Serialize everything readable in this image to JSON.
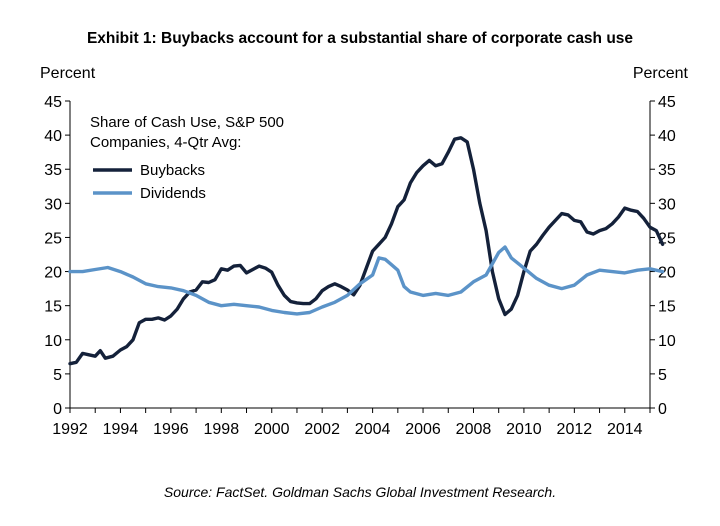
{
  "title": "Exhibit 1: Buybacks account for a substantial share of corporate cash use",
  "source": "Source: FactSet. Goldman Sachs Global Investment Research.",
  "chart_data": {
    "type": "line",
    "title": "Exhibit 1: Buybacks account for a substantial share of corporate cash use",
    "ylabel_left": "Percent",
    "ylabel_right": "Percent",
    "xlabel": "",
    "xlim": [
      1992,
      2015
    ],
    "ylim": [
      0,
      45
    ],
    "y_ticks": [
      0,
      5,
      10,
      15,
      20,
      25,
      30,
      35,
      40,
      45
    ],
    "x_ticks": [
      1992,
      1994,
      1996,
      1998,
      2000,
      2002,
      2004,
      2006,
      2008,
      2010,
      2012,
      2014
    ],
    "grid": false,
    "legend": {
      "placement": "top-left",
      "title_lines": [
        "Share of Cash Use,  S&P 500",
        "Companies, 4-Qtr Avg:"
      ]
    },
    "series": [
      {
        "name": "Buybacks",
        "color": "#14213a",
        "points": [
          [
            1992.0,
            6.5
          ],
          [
            1992.25,
            6.7
          ],
          [
            1992.5,
            8.0
          ],
          [
            1992.75,
            7.8
          ],
          [
            1993.0,
            7.6
          ],
          [
            1993.2,
            8.4
          ],
          [
            1993.4,
            7.3
          ],
          [
            1993.7,
            7.6
          ],
          [
            1994.0,
            8.5
          ],
          [
            1994.25,
            9.0
          ],
          [
            1994.5,
            10.0
          ],
          [
            1994.75,
            12.5
          ],
          [
            1995.0,
            13.0
          ],
          [
            1995.25,
            13.0
          ],
          [
            1995.5,
            13.2
          ],
          [
            1995.75,
            12.9
          ],
          [
            1996.0,
            13.5
          ],
          [
            1996.25,
            14.5
          ],
          [
            1996.5,
            16.0
          ],
          [
            1996.75,
            17.0
          ],
          [
            1997.0,
            17.3
          ],
          [
            1997.25,
            18.5
          ],
          [
            1997.5,
            18.4
          ],
          [
            1997.75,
            18.8
          ],
          [
            1998.0,
            20.4
          ],
          [
            1998.25,
            20.2
          ],
          [
            1998.5,
            20.8
          ],
          [
            1998.75,
            20.9
          ],
          [
            1999.0,
            19.8
          ],
          [
            1999.25,
            20.3
          ],
          [
            1999.5,
            20.8
          ],
          [
            1999.75,
            20.5
          ],
          [
            2000.0,
            19.9
          ],
          [
            2000.25,
            18.0
          ],
          [
            2000.5,
            16.5
          ],
          [
            2000.75,
            15.6
          ],
          [
            2001.0,
            15.4
          ],
          [
            2001.25,
            15.3
          ],
          [
            2001.5,
            15.3
          ],
          [
            2001.75,
            16.0
          ],
          [
            2002.0,
            17.2
          ],
          [
            2002.25,
            17.8
          ],
          [
            2002.5,
            18.2
          ],
          [
            2002.75,
            17.8
          ],
          [
            2003.0,
            17.3
          ],
          [
            2003.25,
            16.6
          ],
          [
            2003.5,
            18.0
          ],
          [
            2003.75,
            20.5
          ],
          [
            2004.0,
            23.0
          ],
          [
            2004.25,
            24.0
          ],
          [
            2004.5,
            25.0
          ],
          [
            2004.75,
            27.0
          ],
          [
            2005.0,
            29.5
          ],
          [
            2005.25,
            30.5
          ],
          [
            2005.5,
            33.0
          ],
          [
            2005.75,
            34.5
          ],
          [
            2006.0,
            35.5
          ],
          [
            2006.25,
            36.3
          ],
          [
            2006.5,
            35.5
          ],
          [
            2006.75,
            35.8
          ],
          [
            2007.0,
            37.5
          ],
          [
            2007.25,
            39.4
          ],
          [
            2007.5,
            39.6
          ],
          [
            2007.75,
            39.0
          ],
          [
            2008.0,
            35.0
          ],
          [
            2008.25,
            30.0
          ],
          [
            2008.5,
            26.0
          ],
          [
            2008.75,
            20.0
          ],
          [
            2009.0,
            16.0
          ],
          [
            2009.25,
            13.7
          ],
          [
            2009.5,
            14.5
          ],
          [
            2009.75,
            16.5
          ],
          [
            2010.0,
            20.0
          ],
          [
            2010.25,
            23.0
          ],
          [
            2010.5,
            24.0
          ],
          [
            2010.75,
            25.3
          ],
          [
            2011.0,
            26.5
          ],
          [
            2011.25,
            27.5
          ],
          [
            2011.5,
            28.5
          ],
          [
            2011.75,
            28.3
          ],
          [
            2012.0,
            27.5
          ],
          [
            2012.25,
            27.3
          ],
          [
            2012.5,
            25.8
          ],
          [
            2012.75,
            25.5
          ],
          [
            2013.0,
            26.0
          ],
          [
            2013.25,
            26.3
          ],
          [
            2013.5,
            27.0
          ],
          [
            2013.75,
            28.0
          ],
          [
            2014.0,
            29.3
          ],
          [
            2014.25,
            29.0
          ],
          [
            2014.5,
            28.8
          ],
          [
            2014.75,
            27.8
          ],
          [
            2015.0,
            26.5
          ],
          [
            2015.25,
            26.0
          ],
          [
            2015.5,
            24.0
          ]
        ]
      },
      {
        "name": "Dividends",
        "color": "#5b93c8",
        "points": [
          [
            1992.0,
            20.0
          ],
          [
            1992.5,
            20.0
          ],
          [
            1993.0,
            20.3
          ],
          [
            1993.5,
            20.6
          ],
          [
            1994.0,
            20.0
          ],
          [
            1994.5,
            19.2
          ],
          [
            1995.0,
            18.2
          ],
          [
            1995.5,
            17.8
          ],
          [
            1996.0,
            17.6
          ],
          [
            1996.5,
            17.2
          ],
          [
            1997.0,
            16.5
          ],
          [
            1997.5,
            15.5
          ],
          [
            1998.0,
            15.0
          ],
          [
            1998.5,
            15.2
          ],
          [
            1999.0,
            15.0
          ],
          [
            1999.5,
            14.8
          ],
          [
            2000.0,
            14.3
          ],
          [
            2000.5,
            14.0
          ],
          [
            2001.0,
            13.8
          ],
          [
            2001.5,
            14.0
          ],
          [
            2002.0,
            14.8
          ],
          [
            2002.5,
            15.5
          ],
          [
            2003.0,
            16.5
          ],
          [
            2003.5,
            18.2
          ],
          [
            2004.0,
            19.5
          ],
          [
            2004.25,
            22.0
          ],
          [
            2004.5,
            21.8
          ],
          [
            2004.75,
            21.0
          ],
          [
            2005.0,
            20.2
          ],
          [
            2005.25,
            17.8
          ],
          [
            2005.5,
            17.0
          ],
          [
            2006.0,
            16.5
          ],
          [
            2006.5,
            16.8
          ],
          [
            2007.0,
            16.5
          ],
          [
            2007.5,
            17.0
          ],
          [
            2008.0,
            18.5
          ],
          [
            2008.5,
            19.5
          ],
          [
            2009.0,
            22.8
          ],
          [
            2009.25,
            23.6
          ],
          [
            2009.5,
            22.0
          ],
          [
            2010.0,
            20.5
          ],
          [
            2010.5,
            19.0
          ],
          [
            2011.0,
            18.0
          ],
          [
            2011.5,
            17.5
          ],
          [
            2012.0,
            18.0
          ],
          [
            2012.5,
            19.5
          ],
          [
            2013.0,
            20.2
          ],
          [
            2013.5,
            20.0
          ],
          [
            2014.0,
            19.8
          ],
          [
            2014.5,
            20.2
          ],
          [
            2015.0,
            20.4
          ],
          [
            2015.5,
            20.0
          ]
        ]
      }
    ]
  }
}
